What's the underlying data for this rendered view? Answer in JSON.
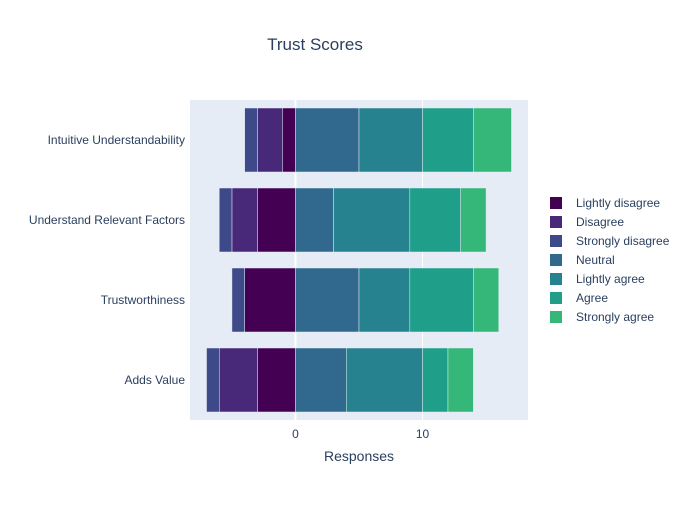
{
  "chart_data": {
    "type": "bar",
    "orientation": "horizontal",
    "barmode": "relative",
    "title": "Trust Scores",
    "xlabel": "Responses",
    "ylabel": "",
    "xlim": [
      -8.3,
      18.3
    ],
    "xticks": [
      0,
      10
    ],
    "grid": true,
    "legend_position": "right",
    "categories": [
      "Adds Value",
      "Trustworthiness",
      "Understand Relevant Factors",
      "Intuitive Understandability"
    ],
    "series": [
      {
        "name": "Lightly disagree",
        "color": "#440154",
        "values": [
          -3,
          -4,
          -3,
          -1
        ]
      },
      {
        "name": "Disagree",
        "color": "#482878",
        "values": [
          -3,
          0,
          -2,
          -2
        ]
      },
      {
        "name": "Strongly disagree",
        "color": "#3e4989",
        "values": [
          -1,
          -1,
          -1,
          -1
        ]
      },
      {
        "name": "Neutral",
        "color": "#31688e",
        "values": [
          4,
          5,
          3,
          5
        ]
      },
      {
        "name": "Lightly agree",
        "color": "#26828e",
        "values": [
          6,
          4,
          6,
          5
        ]
      },
      {
        "name": "Agree",
        "color": "#1f9e89",
        "values": [
          2,
          5,
          4,
          4
        ]
      },
      {
        "name": "Strongly agree",
        "color": "#35b779",
        "values": [
          2,
          2,
          2,
          3
        ]
      }
    ]
  }
}
